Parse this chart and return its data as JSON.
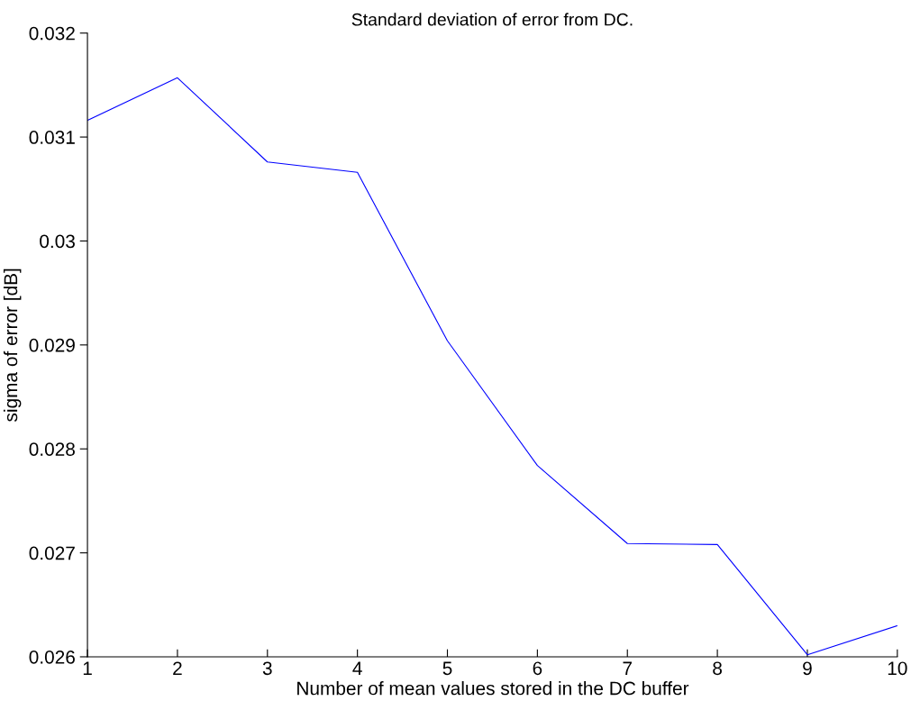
{
  "chart_data": {
    "type": "line",
    "title": "Standard deviation of error from DC.",
    "xlabel": "Number of mean values stored in the DC buffer",
    "ylabel": "sigma of error [dB]",
    "x": [
      1,
      2,
      3,
      4,
      5,
      6,
      7,
      8,
      9,
      10
    ],
    "series": [
      {
        "color": "#0000ff",
        "values": [
          0.03116,
          0.03157,
          0.03076,
          0.03066,
          0.02904,
          0.02784,
          0.02709,
          0.02708,
          0.02602,
          0.0263
        ]
      }
    ],
    "xlim": [
      1,
      10
    ],
    "xticks": [
      1,
      2,
      3,
      4,
      5,
      6,
      7,
      8,
      9,
      10
    ],
    "ylim": [
      0.026,
      0.032
    ],
    "yticks": [
      0.026,
      0.027,
      0.028,
      0.029,
      0.03,
      0.031,
      0.032
    ],
    "grid": false,
    "legend": false,
    "marker": "none",
    "line_style": "solid"
  }
}
